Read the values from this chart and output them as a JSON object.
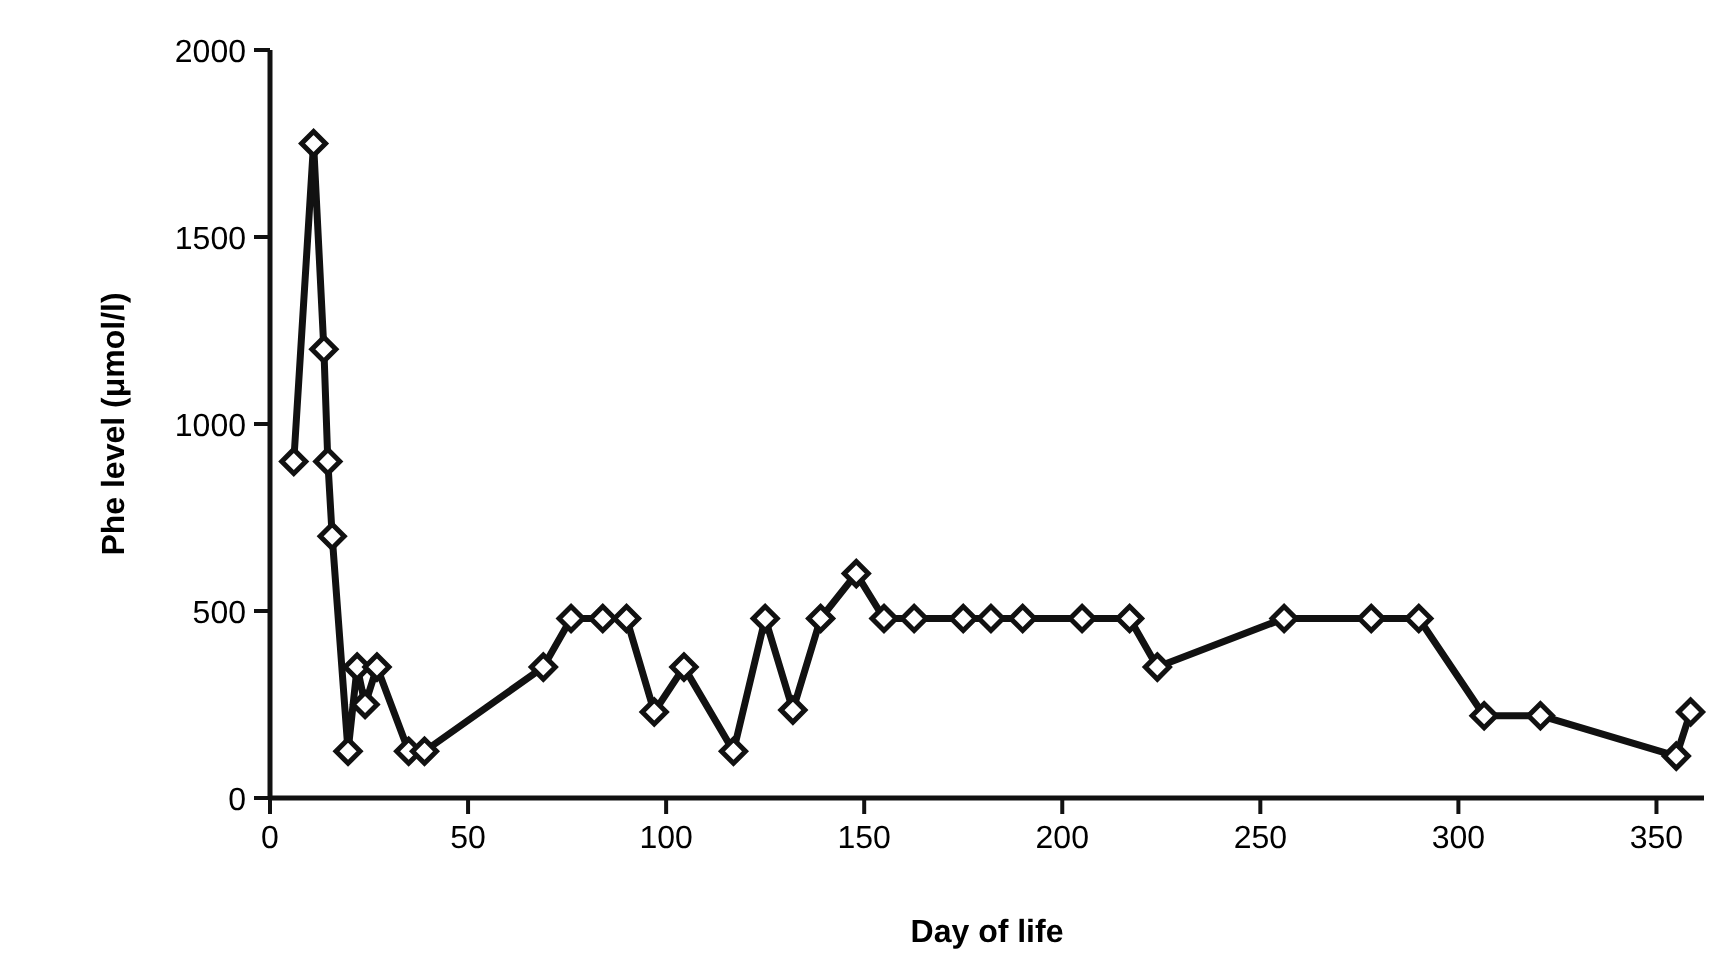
{
  "chart_data": {
    "type": "line",
    "xlabel": "Day of life",
    "ylabel": "Phe level (μmol/l)",
    "xlim": [
      0,
      362
    ],
    "ylim": [
      0,
      2000
    ],
    "xticks": [
      0,
      50,
      100,
      150,
      200,
      250,
      300,
      350
    ],
    "yticks": [
      0,
      500,
      1000,
      1500,
      2000
    ],
    "marker": "diamond",
    "line_style": "solid",
    "grid": false,
    "series": [
      {
        "color": "#111111",
        "x": [
          6,
          11,
          13.6,
          14.6,
          15.7,
          19.7,
          22,
          24,
          27,
          35,
          39,
          69,
          76,
          84,
          90,
          97,
          104.5,
          117,
          125,
          132,
          139,
          148,
          155,
          162.6,
          175,
          182,
          190,
          205,
          217,
          224,
          256,
          278,
          290,
          306.5,
          320.7,
          355,
          358.6
        ],
        "values": [
          900,
          1750,
          1200,
          900,
          700,
          125,
          350,
          250,
          350,
          125,
          125,
          350,
          480,
          480,
          480,
          230,
          350,
          125,
          480,
          235,
          480,
          600,
          480,
          480,
          480,
          480,
          480,
          480,
          480,
          350,
          480,
          480,
          480,
          220,
          220,
          112,
          230
        ]
      }
    ]
  }
}
